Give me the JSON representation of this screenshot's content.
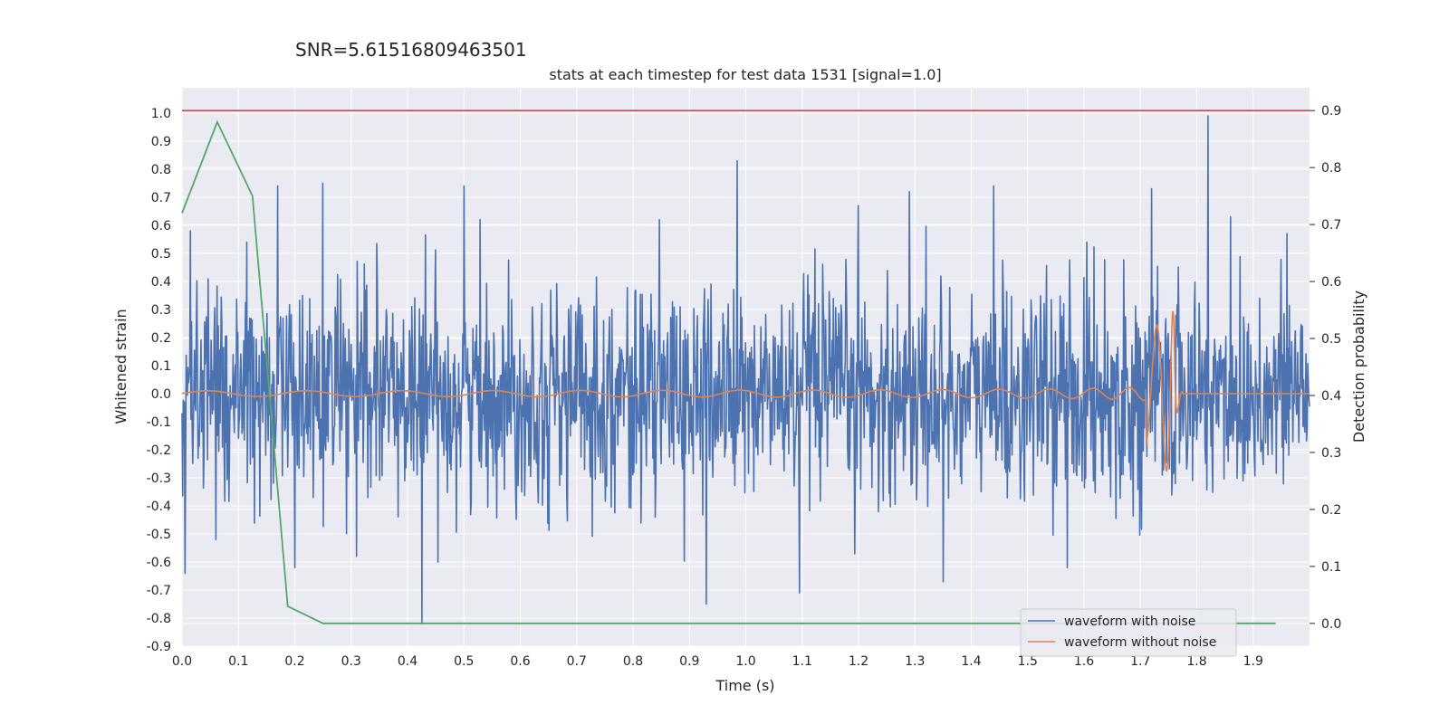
{
  "chart_data": {
    "type": "line",
    "suptitle": "SNR=5.61516809463501",
    "title": "stats at each timestep for test data 1531 [signal=1.0]",
    "xlabel": "Time (s)",
    "ylabel": "Whitened strain",
    "y2label": "Detection probability",
    "xlim": [
      0.0,
      2.0
    ],
    "ylim": [
      -0.9,
      1.09
    ],
    "y2lim": [
      -0.04,
      0.94
    ],
    "x_ticks": [
      "0.0",
      "0.1",
      "0.2",
      "0.3",
      "0.4",
      "0.5",
      "0.6",
      "0.7",
      "0.8",
      "0.9",
      "1.0",
      "1.1",
      "1.2",
      "1.3",
      "1.4",
      "1.5",
      "1.6",
      "1.7",
      "1.8",
      "1.9"
    ],
    "y_ticks": [
      "-0.9",
      "-0.8",
      "-0.7",
      "-0.6",
      "-0.5",
      "-0.4",
      "-0.3",
      "-0.2",
      "-0.1",
      "0.0",
      "0.1",
      "0.2",
      "0.3",
      "0.4",
      "0.5",
      "0.6",
      "0.7",
      "0.8",
      "0.9",
      "1.0"
    ],
    "y2_ticks": [
      "0.0",
      "0.1",
      "0.2",
      "0.3",
      "0.4",
      "0.5",
      "0.6",
      "0.7",
      "0.8",
      "0.9"
    ],
    "grid": true,
    "legend_position": "lower-right",
    "series": [
      {
        "name": "waveform with noise",
        "axis": "left",
        "color": "#4c72b0",
        "kind": "noise",
        "x_range": [
          0.0,
          2.0
        ],
        "spikes": [
          {
            "x": 0.005,
            "y": -0.64
          },
          {
            "x": 0.015,
            "y": 0.58
          },
          {
            "x": 0.06,
            "y": -0.52
          },
          {
            "x": 0.115,
            "y": 0.54
          },
          {
            "x": 0.17,
            "y": 0.74
          },
          {
            "x": 0.2,
            "y": -0.62
          },
          {
            "x": 0.25,
            "y": 0.75
          },
          {
            "x": 0.31,
            "y": -0.58
          },
          {
            "x": 0.425,
            "y": -0.82
          },
          {
            "x": 0.5,
            "y": 0.74
          },
          {
            "x": 0.93,
            "y": -0.75
          },
          {
            "x": 0.985,
            "y": 0.83
          },
          {
            "x": 1.095,
            "y": -0.71
          },
          {
            "x": 1.2,
            "y": 0.67
          },
          {
            "x": 1.29,
            "y": 0.72
          },
          {
            "x": 1.35,
            "y": -0.67
          },
          {
            "x": 1.44,
            "y": 0.74
          },
          {
            "x": 1.57,
            "y": -0.62
          },
          {
            "x": 1.72,
            "y": 0.73
          },
          {
            "x": 1.82,
            "y": 0.99
          },
          {
            "x": 1.86,
            "y": 0.63
          },
          {
            "x": 1.96,
            "y": 0.57
          }
        ]
      },
      {
        "name": "waveform without noise",
        "axis": "left",
        "color": "#dd8452",
        "kind": "chirp",
        "x_range": [
          0.0,
          2.0
        ],
        "merger_time": 1.76,
        "start_amplitude": 0.01,
        "peak_amplitude": 0.3
      },
      {
        "name": "",
        "axis": "right",
        "color": "#55a868",
        "kind": "line",
        "x": [
          0.0,
          0.0625,
          0.125,
          0.1875,
          0.25,
          0.3,
          0.5,
          1.0,
          1.5,
          1.94
        ],
        "y": [
          0.72,
          0.88,
          0.75,
          0.03,
          0.0,
          0.0,
          0.0,
          0.0,
          0.0,
          0.0
        ]
      }
    ],
    "threshold": {
      "axis": "right",
      "y": 0.9,
      "color": "#c44e52"
    }
  }
}
